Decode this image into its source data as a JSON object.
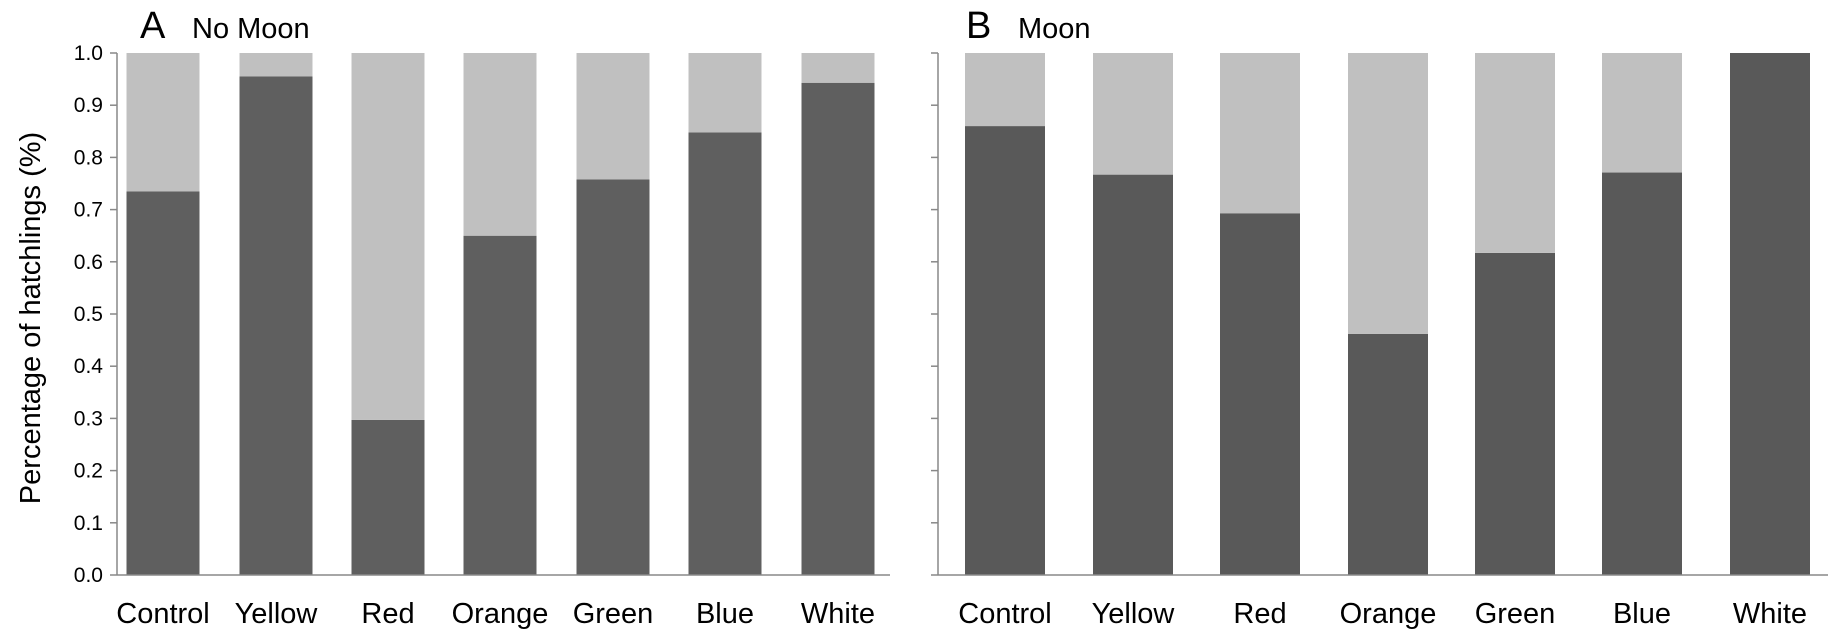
{
  "chart_data": [
    {
      "type": "bar",
      "stacked": true,
      "panel_letter": "A",
      "title": "No Moon",
      "ylabel": "Percentage of hatchlings (%)",
      "xlabel": "",
      "ylim": [
        0,
        1.0
      ],
      "y_ticks": [
        "0.0",
        "0.1",
        "0.2",
        "0.3",
        "0.4",
        "0.5",
        "0.6",
        "0.7",
        "0.8",
        "0.9",
        "1.0"
      ],
      "categories": [
        "Control",
        "Yellow",
        "Red",
        "Orange",
        "Green",
        "Blue",
        "White"
      ],
      "series": [
        {
          "values": [
            0.735,
            0.955,
            0.297,
            0.65,
            0.758,
            0.848,
            0.943
          ]
        },
        {
          "values": [
            0.265,
            0.045,
            0.703,
            0.35,
            0.242,
            0.152,
            0.057
          ]
        }
      ],
      "grid": false,
      "colors": {
        "lower": "#5f5f5f",
        "upper": "#c0c0c0",
        "axis": "#888888"
      }
    },
    {
      "type": "bar",
      "stacked": true,
      "panel_letter": "B",
      "title": "Moon",
      "ylabel": "",
      "xlabel": "",
      "ylim": [
        0,
        1.0
      ],
      "categories": [
        "Control",
        "Yellow",
        "Red",
        "Orange",
        "Green",
        "Blue",
        "White"
      ],
      "series": [
        {
          "values": [
            0.86,
            0.767,
            0.693,
            0.462,
            0.617,
            0.771,
            1.0
          ]
        },
        {
          "values": [
            0.14,
            0.233,
            0.307,
            0.538,
            0.383,
            0.229,
            0.0
          ]
        }
      ],
      "grid": false,
      "colors": {
        "lower": "#595959",
        "upper": "#c0c0c0",
        "axis": "#888888"
      }
    }
  ]
}
